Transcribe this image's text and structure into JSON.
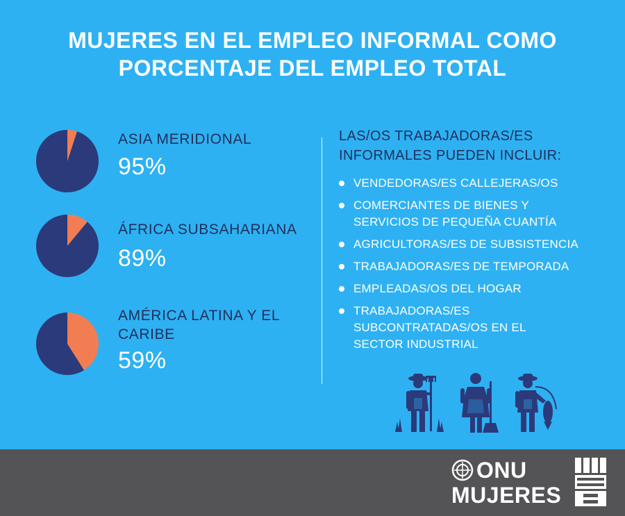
{
  "title": {
    "line1": "MUJERES EN EL EMPLEO INFORMAL COMO",
    "line2": "PORCENTAJE DEL EMPLEO TOTAL"
  },
  "chart_data": [
    {
      "type": "pie",
      "region": "ASIA MERIDIONAL",
      "label": "95%",
      "value": 95,
      "slices": [
        95,
        5
      ],
      "colors": [
        "#2b3a7a",
        "#f27d52"
      ]
    },
    {
      "type": "pie",
      "region": "ÁFRICA SUBSAHARIANA",
      "label": "89%",
      "value": 89,
      "slices": [
        89,
        11
      ],
      "colors": [
        "#2b3a7a",
        "#f27d52"
      ]
    },
    {
      "type": "pie",
      "region": "AMÉRICA LATINA Y EL CARIBE",
      "label": "59%",
      "value": 59,
      "slices": [
        59,
        41
      ],
      "colors": [
        "#2b3a7a",
        "#f27d52"
      ]
    }
  ],
  "list": {
    "heading_line1": "LAS/OS TRABAJADORAS/ES",
    "heading_line2": "INFORMALES PUEDEN INCLUIR:",
    "items": [
      {
        "line1": "VENDEDORAS/ES CALLEJERAS/OS"
      },
      {
        "line1": "COMERCIANTES DE BIENES Y",
        "line2": "SERVICIOS DE PEQUEÑA CUANTÍA"
      },
      {
        "line1": "AGRICULTORAS/ES DE SUBSISTENCIA"
      },
      {
        "line1": "TRABAJADORAS/ES DE TEMPORADA"
      },
      {
        "line1": "EMPLEADAS/OS DEL HOGAR"
      },
      {
        "line1": "TRABAJADORAS/ES",
        "line2": "SUBCONTRATADAS/OS EN EL",
        "line3": "SECTOR INDUSTRIAL"
      }
    ]
  },
  "icons": [
    "farmer-with-rake-icon",
    "domestic-worker-with-broom-icon",
    "fisher-with-fish-icon"
  ],
  "footer": {
    "logo_line1": "ONU",
    "logo_line2": "MUJERES"
  },
  "colors": {
    "background": "#2eb1f2",
    "dark_blue": "#2b3a7a",
    "orange": "#f27d52",
    "footer": "#545456"
  }
}
